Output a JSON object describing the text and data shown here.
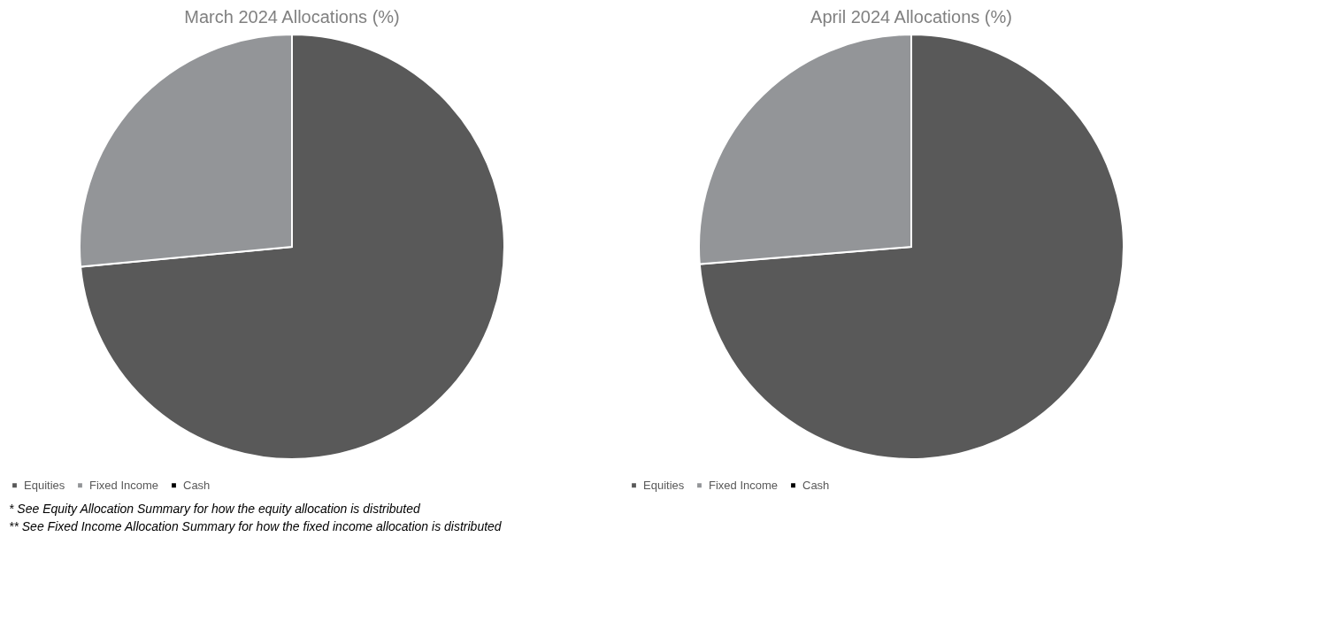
{
  "chart_data": [
    {
      "type": "pie",
      "title": "March 2024 Allocations (%)",
      "categories": [
        "Equities",
        "Fixed Income",
        "Cash"
      ],
      "values": [
        73.5,
        26.5,
        0
      ],
      "colors": [
        "#595959",
        "#939598",
        "#000000"
      ],
      "legend": "bottom",
      "annotations": [
        "*  See Equity Allocation Summary for how the equity allocation is distributed",
        "** See Fixed Income Allocation Summary for how the fixed income allocation is distributed"
      ]
    },
    {
      "type": "pie",
      "title": "April 2024 Allocations (%)",
      "categories": [
        "Equities",
        "Fixed Income",
        "Cash"
      ],
      "values": [
        73.7,
        26.3,
        0
      ],
      "colors": [
        "#595959",
        "#939598",
        "#000000"
      ],
      "legend": "bottom"
    }
  ]
}
